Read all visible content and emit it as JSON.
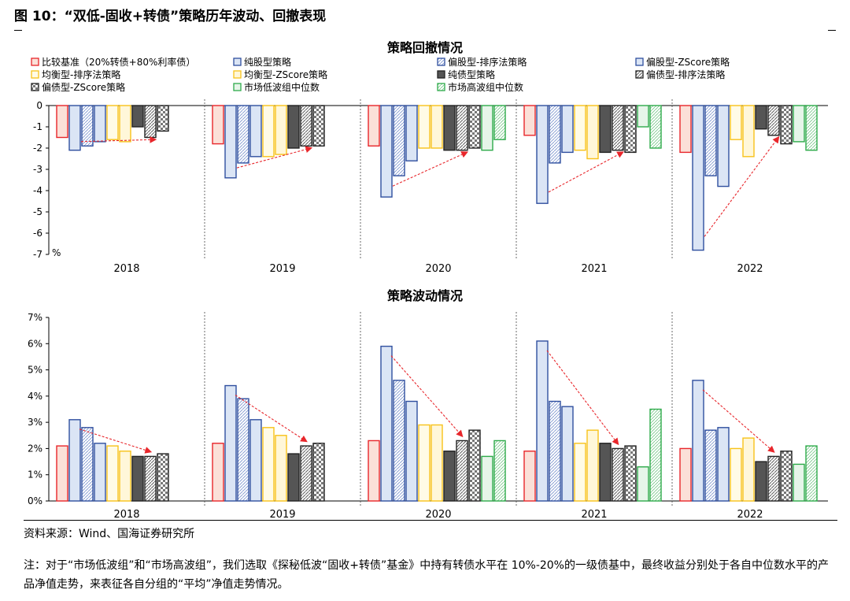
{
  "figure": {
    "title": "图 10：“双低-固收+转债”策略历年波动、回撤表现",
    "source": "资料来源：Wind、国海证券研究所",
    "note": "注：对于“市场低波组”和“市场高波组”，我们选取《探秘低波“固收+转债”基金》中持有转债水平在 10%-20%的一级债基中，最终收益分别处于各自中位数水平的产品净值走势，来表征各自分组的“平均”净值走势情况。"
  },
  "series_styles": [
    {
      "name": "比较基准（20%转债+80%利率债）",
      "stroke": "#e8262b",
      "fill": "#fbe0d8",
      "pattern": "solid"
    },
    {
      "name": "纯股型策略",
      "stroke": "#2f4f9f",
      "fill": "#dbe5f5",
      "pattern": "solid"
    },
    {
      "name": "偏股型-排序法策略",
      "stroke": "#2f4f9f",
      "fill": "#c9d6ef",
      "pattern": "hatch"
    },
    {
      "name": "偏股型-ZScore策略",
      "stroke": "#2f4f9f",
      "fill": "#dbe5f5",
      "pattern": "solid"
    },
    {
      "name": "均衡型-排序法策略",
      "stroke": "#f7c21a",
      "fill": "#fffbe6",
      "pattern": "solid"
    },
    {
      "name": "均衡型-ZScore策略",
      "stroke": "#f7c21a",
      "fill": "#fff7d9",
      "pattern": "solid"
    },
    {
      "name": "纯债型策略",
      "stroke": "#222222",
      "fill": "#555555",
      "pattern": "solid"
    },
    {
      "name": "偏债型-排序法策略",
      "stroke": "#222222",
      "fill": "#aaaaaa",
      "pattern": "hatch"
    },
    {
      "name": "偏债型-ZScore策略",
      "stroke": "#222222",
      "fill": "#bbbbbb",
      "pattern": "check"
    },
    {
      "name": "市场低波组中位数",
      "stroke": "#2eaa4a",
      "fill": "#e6f5e9",
      "pattern": "solid"
    },
    {
      "name": "市场高波组中位数",
      "stroke": "#2eaa4a",
      "fill": "#dff2e3",
      "pattern": "hatch"
    }
  ],
  "chart_data": [
    {
      "type": "bar",
      "title": "策略回撤情况",
      "unit_label": "%",
      "categories": [
        "2018",
        "2019",
        "2020",
        "2021",
        "2022"
      ],
      "ylim": [
        -7,
        0
      ],
      "yticks": [
        0,
        -1,
        -2,
        -3,
        -4,
        -5,
        -6,
        -7
      ],
      "ytick_labels": [
        "0",
        "-1",
        "-2",
        "-3",
        "-4",
        "-5",
        "-6",
        "-7"
      ],
      "series": [
        {
          "name": "比较基准（20%转债+80%利率债）",
          "values": [
            -1.5,
            -1.8,
            -1.9,
            -1.4,
            -2.2
          ]
        },
        {
          "name": "纯股型策略",
          "values": [
            -2.1,
            -3.4,
            -4.3,
            -4.6,
            -6.8
          ]
        },
        {
          "name": "偏股型-排序法策略",
          "values": [
            -1.9,
            -2.7,
            -3.3,
            -2.7,
            -3.3
          ]
        },
        {
          "name": "偏股型-ZScore策略",
          "values": [
            -1.7,
            -2.4,
            -2.6,
            -2.2,
            -3.8
          ]
        },
        {
          "name": "均衡型-排序法策略",
          "values": [
            -1.6,
            -2.4,
            -2.0,
            -2.1,
            -1.6
          ]
        },
        {
          "name": "均衡型-ZScore策略",
          "values": [
            -1.7,
            -2.3,
            -2.0,
            -2.5,
            -2.4
          ]
        },
        {
          "name": "纯债型策略",
          "values": [
            -1.0,
            -2.0,
            -2.1,
            -2.2,
            -1.1
          ]
        },
        {
          "name": "偏债型-排序法策略",
          "values": [
            -1.5,
            -1.9,
            -2.1,
            -2.1,
            -1.4
          ]
        },
        {
          "name": "偏债型-ZScore策略",
          "values": [
            -1.2,
            -1.9,
            -2.0,
            -2.2,
            -1.8
          ]
        },
        {
          "name": "市场低波组中位数",
          "values": [
            null,
            null,
            -2.1,
            -1.0,
            -1.7
          ]
        },
        {
          "name": "市场高波组中位数",
          "values": [
            null,
            null,
            -1.6,
            -2.0,
            -2.1
          ]
        }
      ],
      "trend_arrows": true
    },
    {
      "type": "bar",
      "title": "策略波动情况",
      "categories": [
        "2018",
        "2019",
        "2020",
        "2021",
        "2022"
      ],
      "ylim": [
        0,
        7
      ],
      "yticks": [
        0,
        1,
        2,
        3,
        4,
        5,
        6,
        7
      ],
      "ytick_labels": [
        "0%",
        "1%",
        "2%",
        "3%",
        "4%",
        "5%",
        "6%",
        "7%"
      ],
      "series": [
        {
          "name": "比较基准（20%转债+80%利率债）",
          "values": [
            2.1,
            2.2,
            2.3,
            1.9,
            2.0
          ]
        },
        {
          "name": "纯股型策略",
          "values": [
            3.1,
            4.4,
            5.9,
            6.1,
            4.6
          ]
        },
        {
          "name": "偏股型-排序法策略",
          "values": [
            2.8,
            3.9,
            4.6,
            3.8,
            2.7
          ]
        },
        {
          "name": "偏股型-ZScore策略",
          "values": [
            2.2,
            3.1,
            3.8,
            3.6,
            2.8
          ]
        },
        {
          "name": "均衡型-排序法策略",
          "values": [
            2.1,
            2.8,
            2.9,
            2.2,
            2.0
          ]
        },
        {
          "name": "均衡型-ZScore策略",
          "values": [
            1.9,
            2.5,
            2.9,
            2.7,
            2.4
          ]
        },
        {
          "name": "纯债型策略",
          "values": [
            1.7,
            1.8,
            1.9,
            2.2,
            1.5
          ]
        },
        {
          "name": "偏债型-排序法策略",
          "values": [
            1.7,
            2.1,
            2.3,
            2.0,
            1.7
          ]
        },
        {
          "name": "偏债型-ZScore策略",
          "values": [
            1.8,
            2.2,
            2.7,
            2.1,
            1.9
          ]
        },
        {
          "name": "市场低波组中位数",
          "values": [
            null,
            null,
            1.7,
            1.3,
            1.4
          ]
        },
        {
          "name": "市场高波组中位数",
          "values": [
            null,
            null,
            2.3,
            3.5,
            2.1
          ]
        }
      ],
      "trend_arrows": true
    }
  ]
}
